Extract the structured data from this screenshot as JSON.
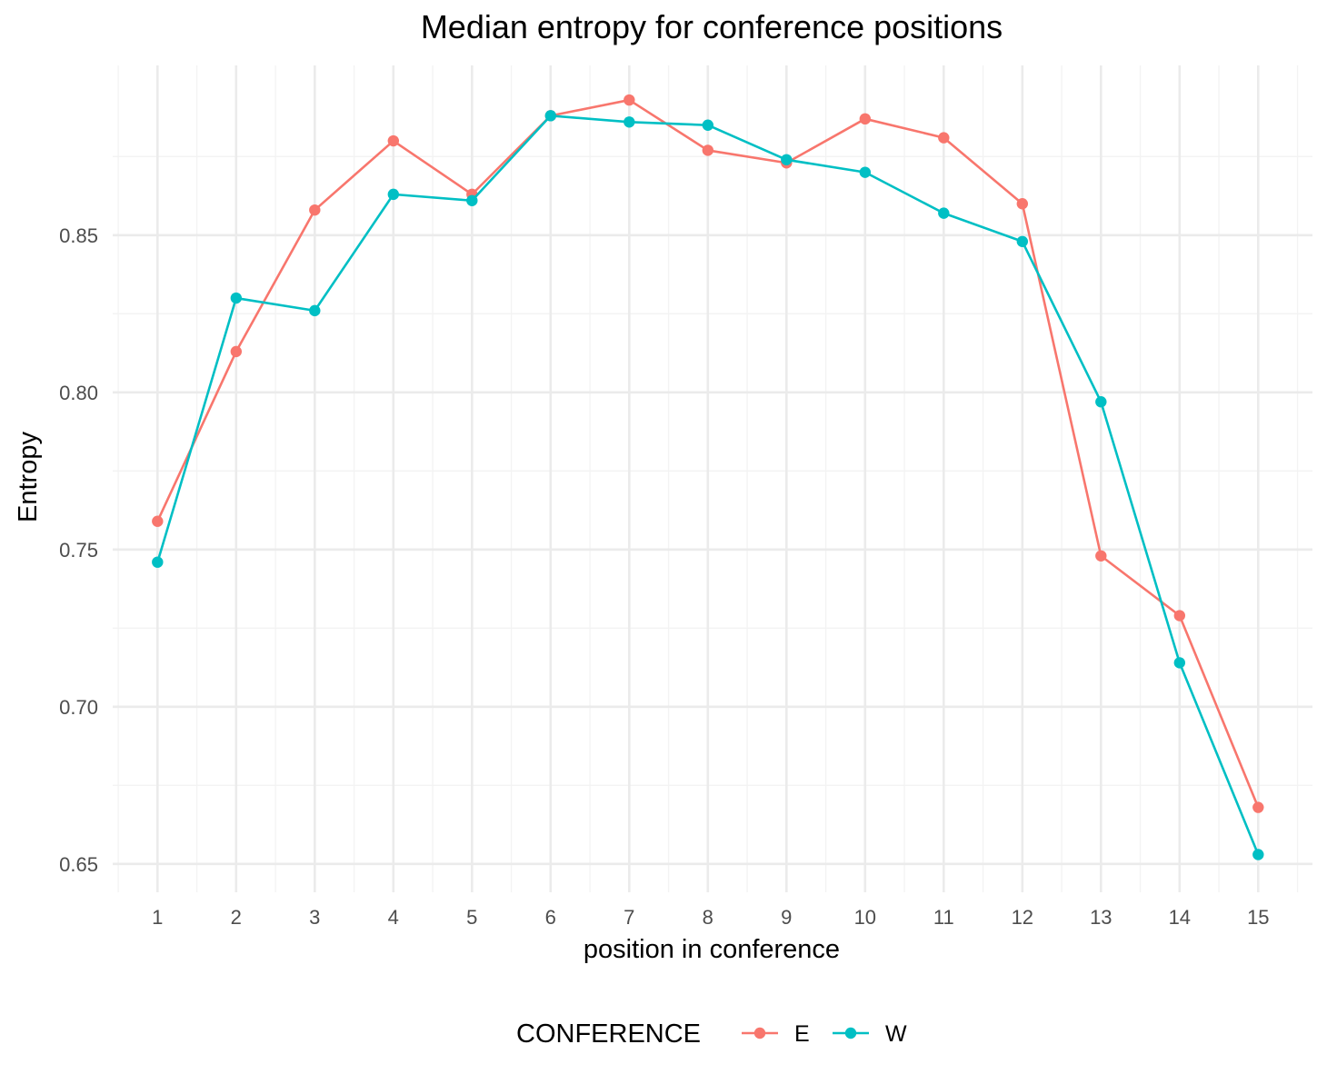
{
  "chart_data": {
    "type": "line",
    "title": "Median entropy for conference positions",
    "xlabel": "position in conference",
    "ylabel": "Entropy",
    "x": [
      1,
      2,
      3,
      4,
      5,
      6,
      7,
      8,
      9,
      10,
      11,
      12,
      13,
      14,
      15
    ],
    "x_ticks": [
      "1",
      "2",
      "3",
      "4",
      "5",
      "6",
      "7",
      "8",
      "9",
      "10",
      "11",
      "12",
      "13",
      "14",
      "15"
    ],
    "y_ticks": [
      "0.65",
      "0.70",
      "0.75",
      "0.80",
      "0.85"
    ],
    "ylim": [
      0.641,
      0.904
    ],
    "xlim": [
      0.43,
      15.69
    ],
    "grid": true,
    "legend": {
      "title": "CONFERENCE",
      "position": "bottom"
    },
    "series": [
      {
        "name": "E",
        "color": "#F8766D",
        "values": [
          0.759,
          0.813,
          0.858,
          0.88,
          0.863,
          0.888,
          0.893,
          0.877,
          0.873,
          0.887,
          0.881,
          0.86,
          0.748,
          0.729,
          0.668
        ]
      },
      {
        "name": "W",
        "color": "#00BFC4",
        "values": [
          0.746,
          0.83,
          0.826,
          0.863,
          0.861,
          0.888,
          0.886,
          0.885,
          0.874,
          0.87,
          0.857,
          0.848,
          0.797,
          0.714,
          0.653
        ]
      }
    ]
  }
}
